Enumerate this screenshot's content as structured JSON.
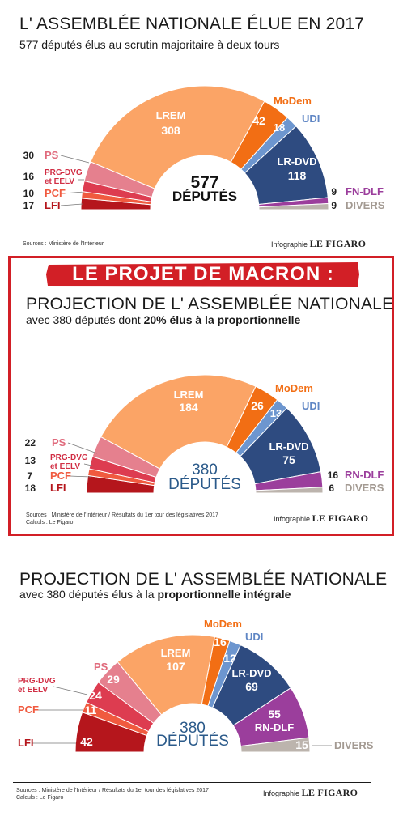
{
  "colors": {
    "PS": "#e5808e",
    "PRG-DVG et EELV": "#dd3c50",
    "PCF": "#f05a3f",
    "LFI": "#b5161c",
    "LREM": "#fba466",
    "MoDem": "#f26e14",
    "UDI": "#6d96cf",
    "LR-DVD": "#2e4b80",
    "FN-DLF": "#9b3e9c",
    "RN-DLF": "#9b3e9c",
    "DIVERS": "#bcb4ad",
    "banner": "#d21f26"
  },
  "sections": [
    {
      "title": "L' ASSEMBLÉE NATIONALE ÉLUE EN 2017",
      "subtitle_pre": "577 députés élus au scrutin majoritaire à deux tours",
      "subtitle_bold": "",
      "subtitle_post": "",
      "center_number": "577",
      "center_label": "DÉPUTÉS",
      "sources": [
        "Sources : Ministère de l'Intérieur"
      ],
      "credit_label": "Infographie",
      "credit_brand": "LE FIGARO"
    },
    {
      "title": "PROJECTION DE L' ASSEMBLÉE NATIONALE",
      "subtitle_pre": "avec 380 députés dont ",
      "subtitle_bold": "20% élus à la proportionnelle",
      "subtitle_post": "",
      "center_number": "380",
      "center_label": "DÉPUTÉS",
      "sources": [
        "Sources : Ministère de l'Intérieur / Résultats du 1er tour des législatives 2017",
        "Calculs : Le Figaro"
      ],
      "credit_label": "Infographie",
      "credit_brand": "LE FIGARO"
    },
    {
      "title": "PROJECTION DE L' ASSEMBLÉE NATIONALE",
      "subtitle_pre": "avec 380 députés élus à la ",
      "subtitle_bold": "proportionnelle intégrale",
      "subtitle_post": "",
      "center_number": "380",
      "center_label": "DÉPUTÉS",
      "sources": [
        "Sources : Ministère de l'Intérieur / Résultats du 1er tour des législatives 2017",
        "Calculs : Le Figaro"
      ],
      "credit_label": "Infographie",
      "credit_brand": "LE FIGARO"
    }
  ],
  "banner": {
    "text": "LE PROJET DE MACRON :"
  },
  "chart_data": [
    {
      "type": "pie",
      "total": 577,
      "categories": [
        "LFI",
        "PCF",
        "PRG-DVG et EELV",
        "PS",
        "LREM",
        "MoDem",
        "UDI",
        "LR-DVD",
        "FN-DLF",
        "DIVERS"
      ],
      "values": [
        17,
        10,
        16,
        30,
        308,
        42,
        18,
        118,
        9,
        9
      ]
    },
    {
      "type": "pie",
      "total": 380,
      "categories": [
        "LFI",
        "PCF",
        "PRG-DVG et EELV",
        "PS",
        "LREM",
        "MoDem",
        "UDI",
        "LR-DVD",
        "RN-DLF",
        "DIVERS"
      ],
      "values": [
        18,
        7,
        13,
        22,
        184,
        26,
        13,
        75,
        16,
        6
      ]
    },
    {
      "type": "pie",
      "total": 380,
      "categories": [
        "LFI",
        "PCF",
        "PRG-DVG et EELV",
        "PS",
        "LREM",
        "MoDem",
        "UDI",
        "LR-DVD",
        "RN-DLF",
        "DIVERS"
      ],
      "values": [
        42,
        11,
        24,
        29,
        107,
        16,
        12,
        69,
        55,
        15
      ]
    }
  ]
}
